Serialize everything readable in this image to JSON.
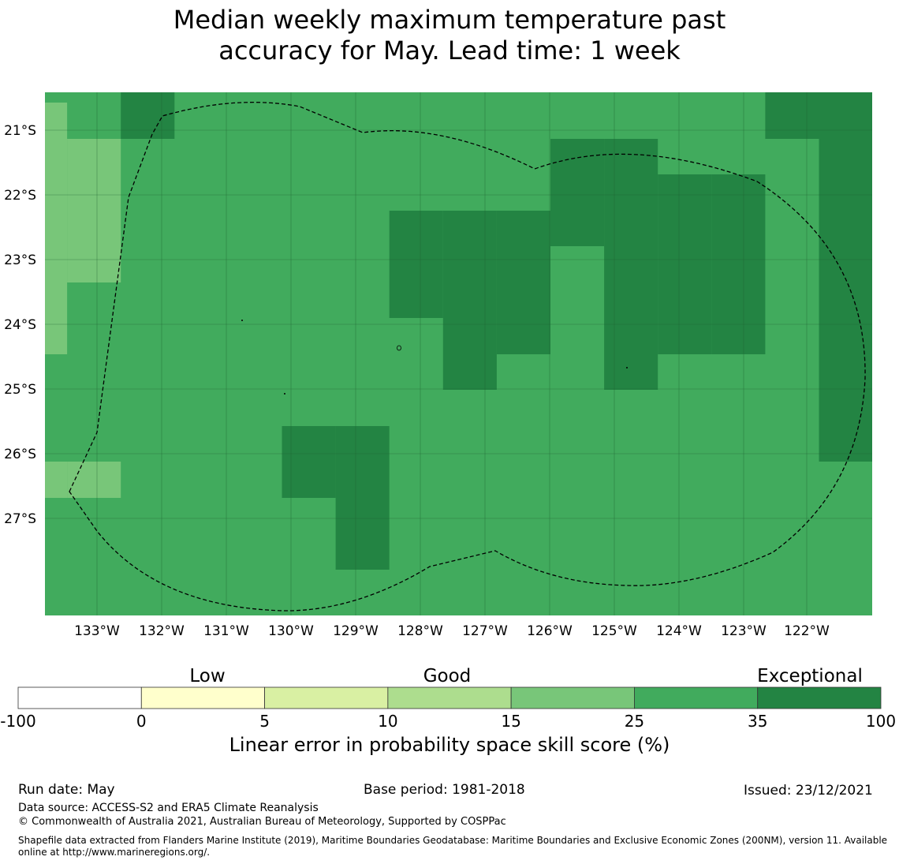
{
  "title_line1": "Median weekly maximum temperature past",
  "title_line2": "accuracy for May. Lead time: 1 week",
  "map": {
    "lon_labels": [
      "133°W",
      "132°W",
      "131°W",
      "130°W",
      "129°W",
      "128°W",
      "127°W",
      "126°W",
      "125°W",
      "124°W",
      "123°W",
      "122°W"
    ],
    "lat_labels": [
      "21°S",
      "22°S",
      "23°S",
      "24°S",
      "25°S",
      "26°S",
      "27°S"
    ],
    "grid_lines": true,
    "colors": {
      "c15_25": "#78c679",
      "c25_35": "#41ab5d",
      "c35_100": "#238443",
      "boundary": "#000000"
    },
    "dark_cells_35_100": [
      [
        2,
        0
      ],
      [
        2,
        1
      ],
      [
        14,
        0
      ],
      [
        14,
        1
      ],
      [
        15,
        0
      ],
      [
        15,
        1
      ],
      [
        15,
        2
      ],
      [
        15,
        3
      ],
      [
        15,
        4
      ],
      [
        15,
        5
      ],
      [
        15,
        6
      ],
      [
        15,
        7
      ],
      [
        15,
        8
      ],
      [
        15,
        9
      ],
      [
        15,
        10
      ],
      [
        10,
        2
      ],
      [
        10,
        3
      ],
      [
        10,
        4
      ],
      [
        11,
        2
      ],
      [
        11,
        3
      ],
      [
        11,
        4
      ],
      [
        11,
        5
      ],
      [
        11,
        6
      ],
      [
        11,
        7
      ],
      [
        11,
        8
      ],
      [
        12,
        3
      ],
      [
        12,
        4
      ],
      [
        12,
        5
      ],
      [
        12,
        6
      ],
      [
        12,
        7
      ],
      [
        13,
        3
      ],
      [
        13,
        4
      ],
      [
        13,
        5
      ],
      [
        13,
        6
      ],
      [
        13,
        7
      ],
      [
        9,
        4
      ],
      [
        9,
        5
      ],
      [
        9,
        6
      ],
      [
        9,
        7
      ],
      [
        8,
        4
      ],
      [
        8,
        5
      ],
      [
        8,
        6
      ],
      [
        8,
        7
      ],
      [
        8,
        8
      ],
      [
        7,
        4
      ],
      [
        7,
        5
      ],
      [
        7,
        6
      ],
      [
        6,
        10
      ],
      [
        5,
        10
      ],
      [
        5,
        11
      ],
      [
        6,
        11
      ],
      [
        6,
        12
      ],
      [
        6,
        13
      ]
    ],
    "light_cells_15_25": [
      [
        0,
        1
      ],
      [
        0,
        2
      ],
      [
        0,
        3
      ],
      [
        0,
        4
      ],
      [
        0,
        5
      ],
      [
        0,
        6
      ],
      [
        0,
        7
      ],
      [
        1,
        2
      ],
      [
        1,
        3
      ],
      [
        1,
        4
      ],
      [
        1,
        5
      ],
      [
        0,
        11
      ],
      [
        1,
        11
      ]
    ]
  },
  "colorbar": {
    "category_labels": [
      "Low",
      "Good",
      "Exceptional"
    ],
    "tick_labels": [
      "-100",
      "0",
      "5",
      "10",
      "15",
      "25",
      "35",
      "100"
    ],
    "colors": [
      "#ffffff",
      "#ffffcc",
      "#d9f0a3",
      "#addd8e",
      "#78c679",
      "#41ab5d",
      "#238443"
    ],
    "label": "Linear error in probability space skill score (%)"
  },
  "footer": {
    "run_date": "Run date: May",
    "base_period": "Base period: 1981-2018",
    "issued": "Issued: 23/12/2021",
    "data_source": "Data source: ACCESS-S2 and ERA5 Climate Reanalysis",
    "copyright": "© Commonwealth of Australia 2021, Australian Bureau of Meteorology, Supported by COSPPac",
    "shapefile": "Shapefile data extracted from Flanders Marine Institute (2019), Maritime Boundaries Geodatabase: Maritime Boundaries and Exclusive Economic Zones (200NM), version 11. Available online at http://www.marineregions.org/."
  }
}
